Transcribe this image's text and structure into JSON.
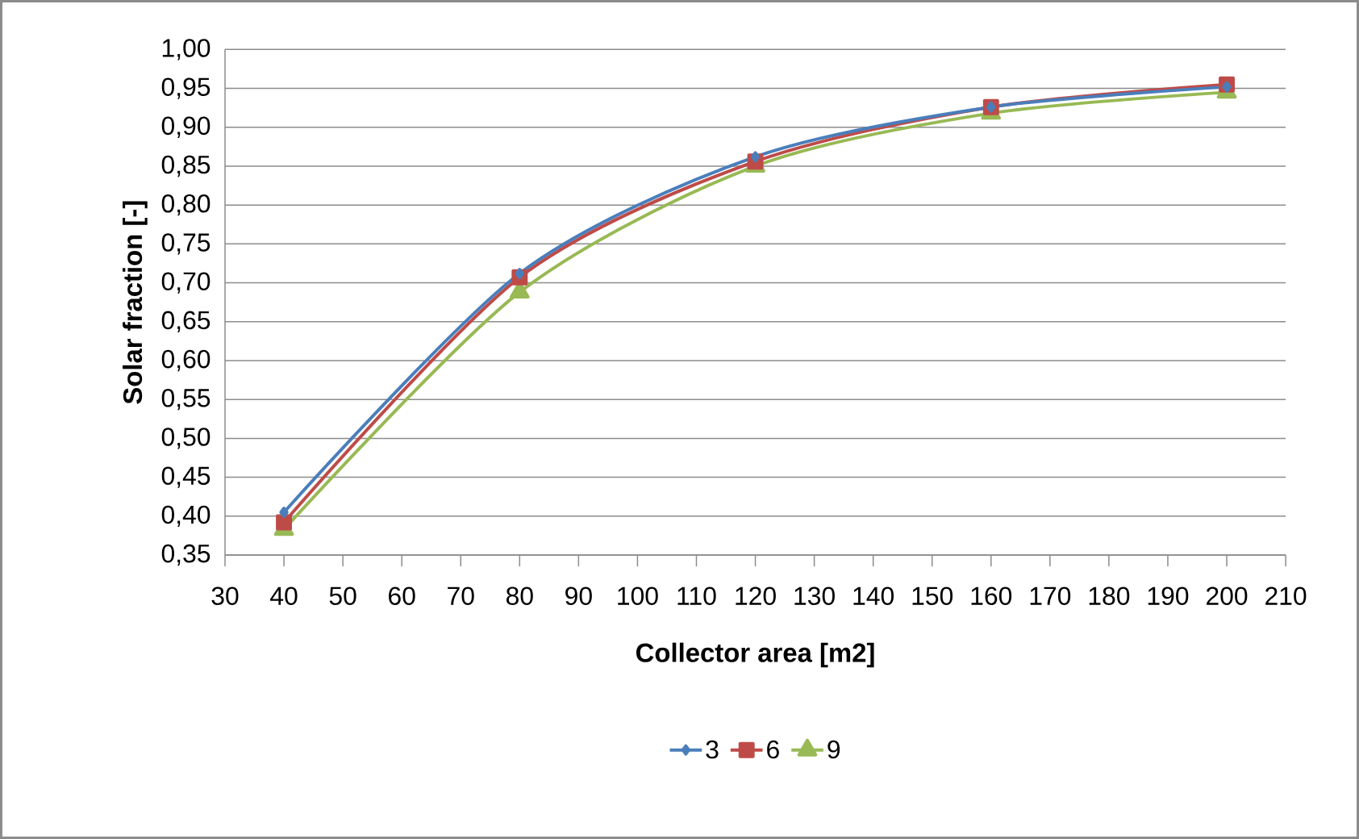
{
  "chart_data": {
    "type": "line",
    "xlabel": "Collector area [m2]",
    "ylabel": "Solar fraction [-]",
    "x": [
      40,
      80,
      120,
      160,
      200
    ],
    "series": [
      {
        "name": "3",
        "color": "#4a7ebb",
        "marker": "diamond",
        "values": [
          0.405,
          0.712,
          0.862,
          0.926,
          0.952
        ]
      },
      {
        "name": "6",
        "color": "#be4b48",
        "marker": "square",
        "values": [
          0.392,
          0.707,
          0.856,
          0.926,
          0.955
        ]
      },
      {
        "name": "9",
        "color": "#98b954",
        "marker": "triangle",
        "values": [
          0.383,
          0.688,
          0.85,
          0.918,
          0.945
        ]
      }
    ],
    "xlim": [
      30,
      210
    ],
    "xticks": [
      30,
      40,
      50,
      60,
      70,
      80,
      90,
      100,
      110,
      120,
      130,
      140,
      150,
      160,
      170,
      180,
      190,
      200,
      210
    ],
    "ylim": [
      0.35,
      1.0
    ],
    "yticks": [
      {
        "value": 0.35,
        "label": "0,35"
      },
      {
        "value": 0.4,
        "label": "0,40"
      },
      {
        "value": 0.45,
        "label": "0,45"
      },
      {
        "value": 0.5,
        "label": "0,50"
      },
      {
        "value": 0.55,
        "label": "0,55"
      },
      {
        "value": 0.6,
        "label": "0,60"
      },
      {
        "value": 0.65,
        "label": "0,65"
      },
      {
        "value": 0.7,
        "label": "0,70"
      },
      {
        "value": 0.75,
        "label": "0,75"
      },
      {
        "value": 0.8,
        "label": "0,80"
      },
      {
        "value": 0.85,
        "label": "0,85"
      },
      {
        "value": 0.9,
        "label": "0,90"
      },
      {
        "value": 0.95,
        "label": "0,95"
      },
      {
        "value": 1.0,
        "label": "1,00"
      }
    ],
    "grid": "y",
    "legend": "bottom",
    "line_style": "solid"
  }
}
